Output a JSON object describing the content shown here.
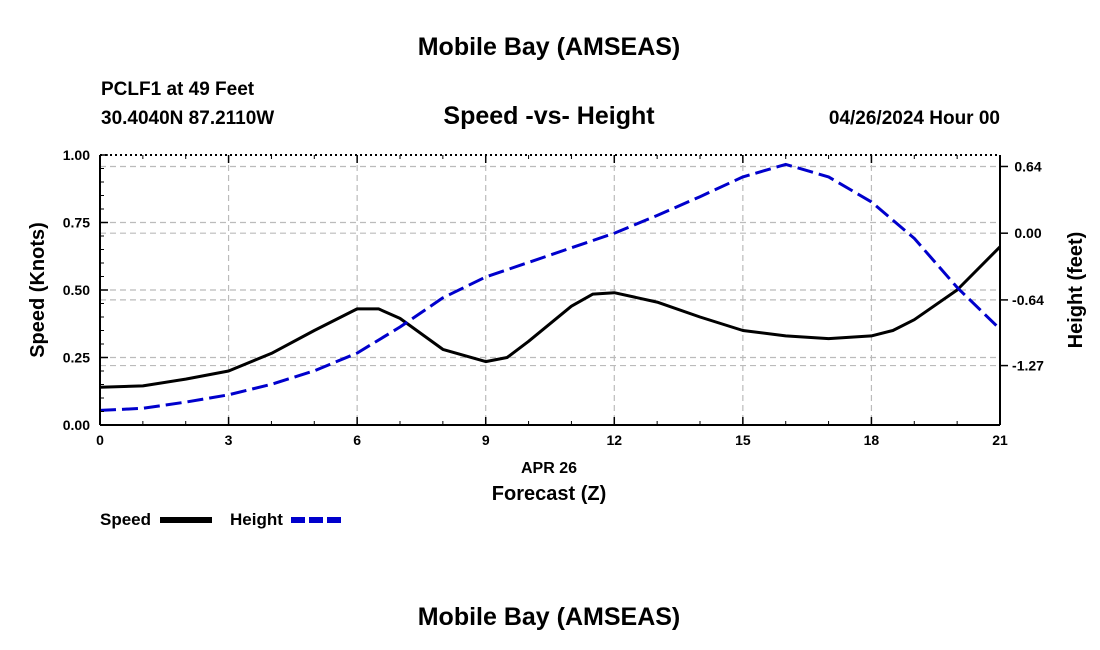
{
  "header": {
    "title": "Mobile Bay (AMSEAS)",
    "station": "PCLF1 at 49 Feet",
    "coords": "30.4040N  87.2110W",
    "date": "04/26/2024 Hour 00",
    "footer_title": "Mobile Bay (AMSEAS)"
  },
  "chart_data": {
    "type": "line",
    "title": "Speed -vs- Height",
    "xlabel": "Forecast (Z)",
    "xsub": "APR 26",
    "ylabel": "Speed (Knots)",
    "y2label": "Height (feet)",
    "xlim": [
      0,
      21
    ],
    "ylim": [
      0,
      1.0
    ],
    "y2lim": [
      -1.84,
      0.75
    ],
    "x_ticks": [
      "0",
      "3",
      "6",
      "9",
      "12",
      "15",
      "18",
      "21"
    ],
    "y_ticks": [
      "0.00",
      "0.25",
      "0.50",
      "0.75",
      "1.00"
    ],
    "y2_ticks": [
      "0.64",
      "0.00",
      "-0.64",
      "-1.27"
    ],
    "y2_tick_values": [
      0.64,
      0.0,
      -0.64,
      -1.27
    ],
    "grid": true,
    "series": [
      {
        "name": "Speed",
        "axis": "left",
        "color": "#000000",
        "style": "solid",
        "x": [
          0,
          1,
          2,
          3,
          4,
          5,
          6,
          6.5,
          7,
          8,
          9,
          9.5,
          10,
          11,
          11.5,
          12,
          13,
          14,
          15,
          16,
          17,
          18,
          18.5,
          19,
          20,
          21
        ],
        "values": [
          0.14,
          0.145,
          0.17,
          0.2,
          0.265,
          0.35,
          0.43,
          0.43,
          0.395,
          0.28,
          0.235,
          0.25,
          0.31,
          0.44,
          0.485,
          0.49,
          0.455,
          0.4,
          0.35,
          0.33,
          0.32,
          0.33,
          0.35,
          0.39,
          0.5,
          0.66
        ]
      },
      {
        "name": "Height",
        "axis": "right",
        "color": "#0000cc",
        "style": "dashed",
        "x": [
          0,
          1,
          2,
          3,
          4,
          5,
          6,
          7,
          8,
          9,
          10,
          11,
          12,
          13,
          14,
          15,
          16,
          17,
          18,
          19,
          20,
          21
        ],
        "values": [
          -1.7,
          -1.68,
          -1.62,
          -1.55,
          -1.45,
          -1.32,
          -1.15,
          -0.9,
          -0.62,
          -0.42,
          -0.28,
          -0.14,
          0.0,
          0.17,
          0.35,
          0.54,
          0.66,
          0.54,
          0.3,
          -0.05,
          -0.52,
          -0.92
        ]
      }
    ],
    "legend": [
      {
        "label": "Speed",
        "color": "#000000",
        "style": "solid"
      },
      {
        "label": "Height",
        "color": "#0000cc",
        "style": "dashed"
      }
    ]
  }
}
